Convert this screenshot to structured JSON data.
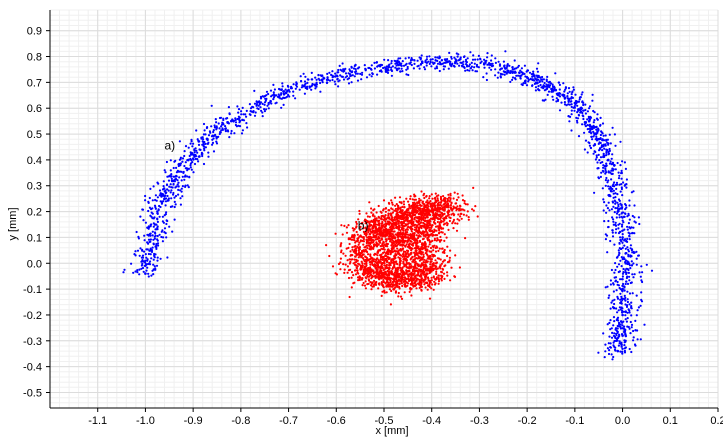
{
  "chart_data": {
    "type": "scatter",
    "xlabel": "x [mm]",
    "ylabel": "y [mm]",
    "xlim": [
      -1.2,
      0.2
    ],
    "ylim": [
      -0.56,
      0.98
    ],
    "x_ticks": [
      -1.1,
      -1.0,
      -0.9,
      -0.8,
      -0.7,
      -0.6,
      -0.5,
      -0.4,
      -0.3,
      -0.2,
      -0.1,
      0.0,
      0.1,
      0.2
    ],
    "x_tick_labels": [
      "-1.1",
      "-1.0",
      "-0.9",
      "-0.8",
      "-0.7",
      "-0.6",
      "-0.5",
      "-0.4",
      "-0.3",
      "-0.2",
      "-0.1",
      "0.0",
      "0.1",
      "0.2"
    ],
    "y_ticks": [
      -0.5,
      -0.4,
      -0.3,
      -0.2,
      -0.1,
      0.0,
      0.1,
      0.2,
      0.3,
      0.4,
      0.5,
      0.6,
      0.7,
      0.8,
      0.9
    ],
    "y_tick_labels": [
      "-0.5",
      "-0.4",
      "-0.3",
      "-0.2",
      "-0.1",
      "0.0",
      "0.1",
      "0.2",
      "0.3",
      "0.4",
      "0.5",
      "0.6",
      "0.7",
      "0.8",
      "0.9"
    ],
    "grid": true,
    "annotations": [
      {
        "text": "a)",
        "x": -0.96,
        "y": 0.44
      },
      {
        "text": "b)",
        "x": -0.555,
        "y": 0.13
      }
    ],
    "series": [
      {
        "color": "#0000ff",
        "shape": "arc",
        "points": [
          [
            -1.0,
            -0.04
          ],
          [
            -0.99,
            0.05
          ],
          [
            -0.98,
            0.15
          ],
          [
            -0.96,
            0.25
          ],
          [
            -0.94,
            0.32
          ],
          [
            -0.91,
            0.4
          ],
          [
            -0.87,
            0.48
          ],
          [
            -0.82,
            0.55
          ],
          [
            -0.76,
            0.62
          ],
          [
            -0.7,
            0.67
          ],
          [
            -0.63,
            0.71
          ],
          [
            -0.56,
            0.74
          ],
          [
            -0.49,
            0.76
          ],
          [
            -0.42,
            0.78
          ],
          [
            -0.35,
            0.78
          ],
          [
            -0.29,
            0.77
          ],
          [
            -0.23,
            0.74
          ],
          [
            -0.18,
            0.71
          ],
          [
            -0.14,
            0.67
          ],
          [
            -0.1,
            0.62
          ],
          [
            -0.07,
            0.55
          ],
          [
            -0.05,
            0.48
          ],
          [
            -0.03,
            0.4
          ],
          [
            -0.02,
            0.3
          ],
          [
            -0.01,
            0.2
          ],
          [
            0.0,
            0.1
          ],
          [
            0.01,
            0.0
          ],
          [
            0.0,
            -0.1
          ],
          [
            0.0,
            -0.2
          ],
          [
            0.0,
            -0.28
          ],
          [
            -0.01,
            -0.34
          ]
        ]
      },
      {
        "color": "#ff0000",
        "shape": "cluster",
        "points": [
          [
            -0.55,
            0.03
          ],
          [
            -0.53,
            0.09
          ],
          [
            -0.51,
            0.13
          ],
          [
            -0.49,
            0.16
          ],
          [
            -0.46,
            0.18
          ],
          [
            -0.43,
            0.2
          ],
          [
            -0.4,
            0.22
          ],
          [
            -0.37,
            0.22
          ],
          [
            -0.41,
            0.14
          ],
          [
            -0.43,
            0.08
          ],
          [
            -0.42,
            0.02
          ],
          [
            -0.41,
            -0.04
          ],
          [
            -0.44,
            -0.06
          ],
          [
            -0.48,
            -0.06
          ],
          [
            -0.51,
            -0.04
          ],
          [
            -0.54,
            -0.02
          ],
          [
            -0.47,
            0.04
          ],
          [
            -0.45,
            0.1
          ]
        ]
      }
    ]
  }
}
